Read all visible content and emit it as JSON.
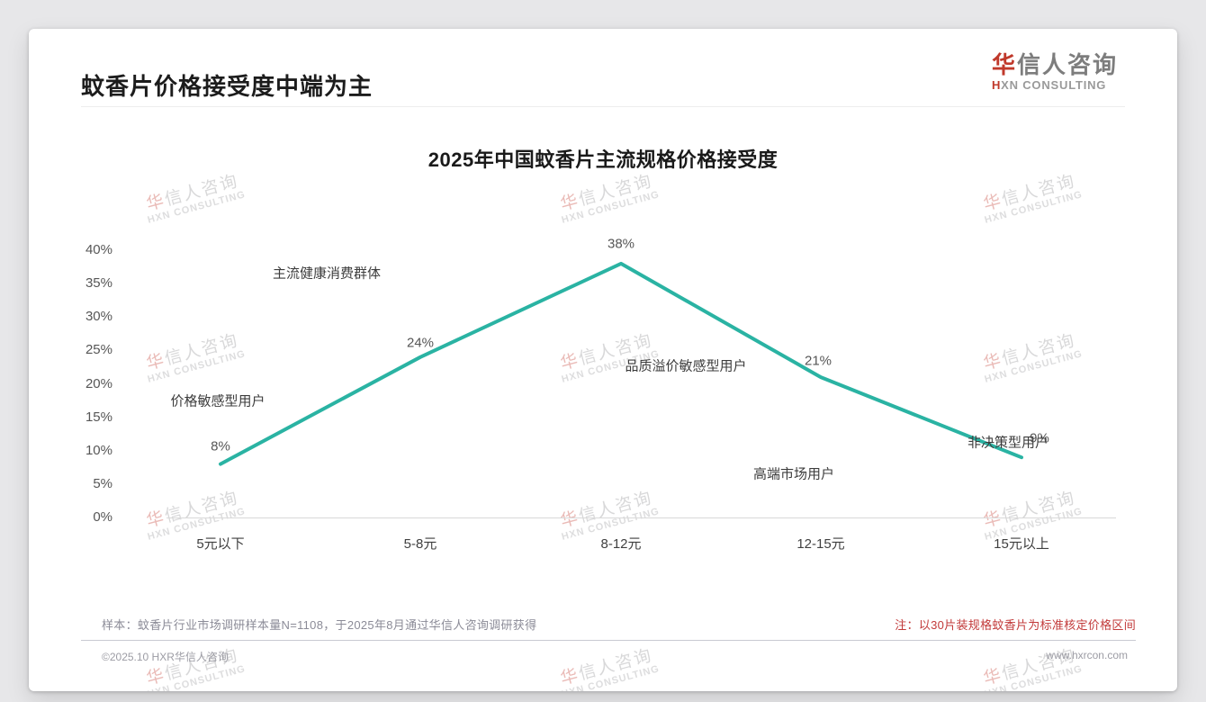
{
  "page": {
    "title": "蚊香片价格接受度中端为主",
    "logo": {
      "zh_accent": "华",
      "zh_rest": "信人咨询",
      "en_accent": "H",
      "en_rest": "XN CONSULTING"
    },
    "watermark": {
      "zh_accent": "华",
      "zh_rest": "信人咨询",
      "en": "HXN CONSULTING"
    },
    "footer": {
      "sample_note": "样本：蚊香片行业市场调研样本量N=1108，于2025年8月通过华信人咨询调研获得",
      "price_note": "注：以30片装规格蚊香片为标准核定价格区间",
      "copyright": "©2025.10 HXR华信人咨询",
      "website": "www.hxrcon.com"
    }
  },
  "chart_data": {
    "type": "line",
    "title": "2025年中国蚊香片主流规格价格接受度",
    "categories": [
      "5元以下",
      "5-8元",
      "8-12元",
      "12-15元",
      "15元以上"
    ],
    "values": [
      8,
      24,
      38,
      21,
      9
    ],
    "value_labels": [
      "8%",
      "24%",
      "38%",
      "21%",
      "9%"
    ],
    "y_ticks": [
      "40%",
      "35%",
      "30%",
      "25%",
      "20%",
      "15%",
      "10%",
      "5%",
      "0%"
    ],
    "ylim": [
      0,
      40
    ],
    "xlabel": "",
    "ylabel": "",
    "grid": false,
    "legend": "none",
    "markers": false,
    "line_color": "#2ab3a3",
    "annotations": [
      {
        "text": "价格敏感型用户",
        "anchor_category": "5元以下"
      },
      {
        "text": "主流健康消费群体",
        "anchor_category": "5-8元"
      },
      {
        "text": "品质溢价敏感型用户",
        "anchor_category": "8-12元"
      },
      {
        "text": "高端市场用户",
        "anchor_category": "12-15元"
      },
      {
        "text": "非决策型用户",
        "anchor_category": "15元以上"
      }
    ]
  }
}
